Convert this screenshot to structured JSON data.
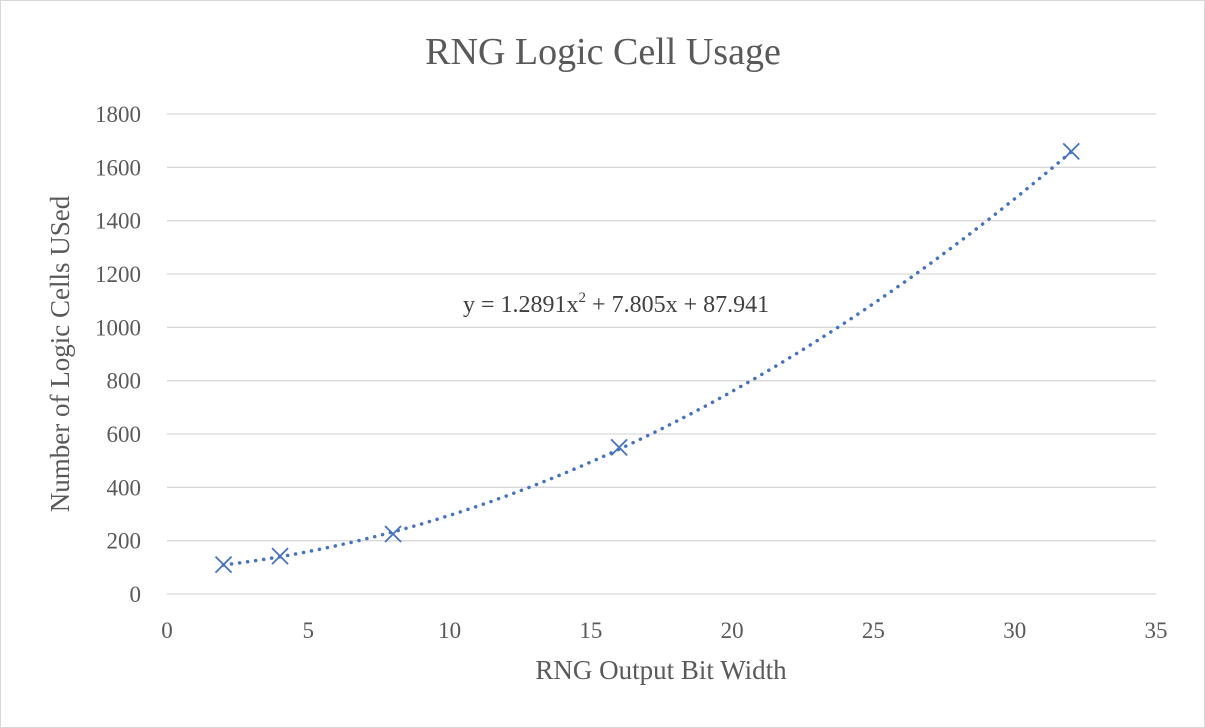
{
  "chart_data": {
    "type": "scatter",
    "title": "RNG Logic Cell Usage",
    "xlabel": "RNG Output Bit Width",
    "ylabel": "Number of Logic Cells USed",
    "xlim": [
      0,
      35
    ],
    "ylim": [
      0,
      1800
    ],
    "x_ticks": [
      0,
      5,
      10,
      15,
      20,
      25,
      30,
      35
    ],
    "y_ticks": [
      0,
      200,
      400,
      600,
      800,
      1000,
      1200,
      1400,
      1600,
      1800
    ],
    "grid": "horizontal",
    "legend": "none",
    "marker": "x",
    "series": [
      {
        "x": [
          2,
          4,
          8,
          16,
          32
        ],
        "y": [
          110,
          142,
          225,
          550,
          1660
        ]
      }
    ],
    "trendline": {
      "type": "polynomial-2",
      "coefficients": [
        1.2891,
        7.805,
        87.941
      ],
      "label_prefix": "y = 1.2891x",
      "label_sup": "2",
      "label_suffix": " + 7.805x + 87.941"
    },
    "colors": {
      "series": "#4472c4",
      "grid": "#d9d9d9",
      "text": "#595959"
    }
  }
}
